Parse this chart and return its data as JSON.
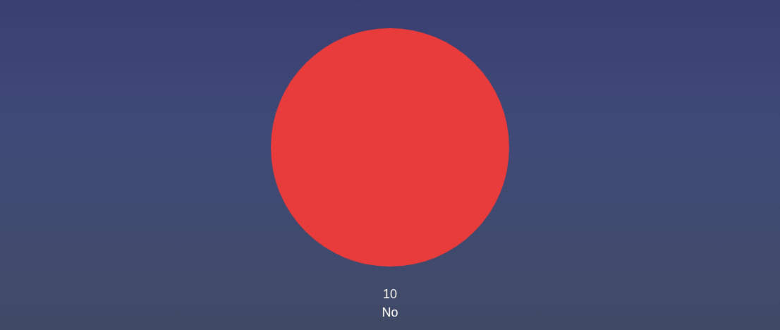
{
  "chart_data": {
    "type": "pie",
    "categories": [
      "No"
    ],
    "values": [
      10
    ],
    "colors": [
      "#e83c3c"
    ],
    "data_labels": true,
    "legend": false
  }
}
